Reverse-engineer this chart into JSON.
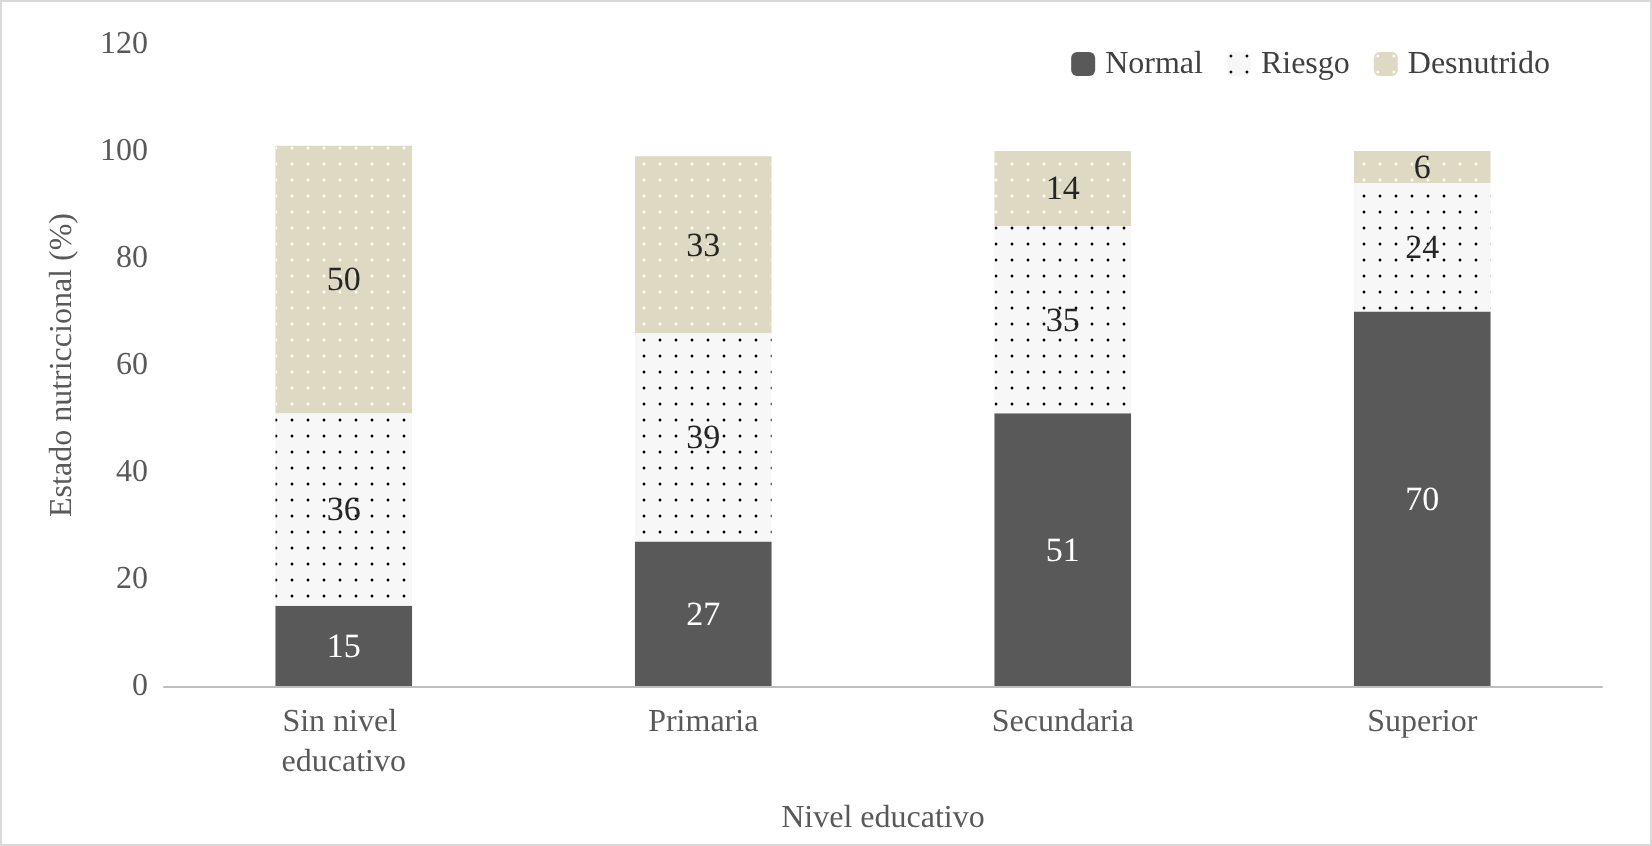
{
  "chart_data": {
    "type": "bar",
    "stacked": true,
    "xlabel": "Nivel educativo",
    "ylabel": "Estado nutriccional (%)",
    "categories": [
      "Sin nivel educativo",
      "Primaria",
      "Secundaria",
      "Superior"
    ],
    "series": [
      {
        "name": "Normal",
        "color": "#595959",
        "values": [
          15,
          27,
          51,
          70
        ]
      },
      {
        "name": "Riesgo",
        "color": "#f7f7f7",
        "values": [
          36,
          39,
          35,
          24
        ]
      },
      {
        "name": "Desnutrido",
        "color": "#ddd9c3",
        "values": [
          50,
          33,
          14,
          6
        ]
      }
    ],
    "ylim": [
      0,
      120
    ],
    "yticks": [
      0,
      20,
      40,
      60,
      80,
      100,
      120
    ],
    "data_labels": true,
    "legend": "top right",
    "grid": false
  }
}
